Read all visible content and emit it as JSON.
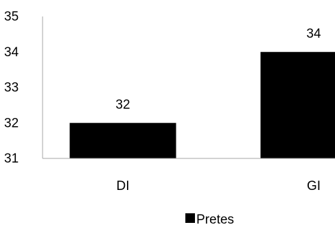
{
  "chart_data": {
    "type": "bar",
    "categories": [
      "DI",
      "GI"
    ],
    "series": [
      {
        "name": "Pretes",
        "values": [
          32,
          34
        ],
        "color": "#000000"
      }
    ],
    "data_labels": [
      "32",
      "34"
    ],
    "y_ticks": [
      31,
      32,
      33,
      34,
      35
    ],
    "ylim": [
      31,
      35
    ],
    "title": "",
    "xlabel": "",
    "ylabel": "",
    "grid": false,
    "legend": {
      "position": "bottom",
      "entries": [
        "Pretes"
      ]
    },
    "colors": {
      "axis": "#a6a6a6",
      "bar": "#000000",
      "text": "#000000"
    }
  }
}
